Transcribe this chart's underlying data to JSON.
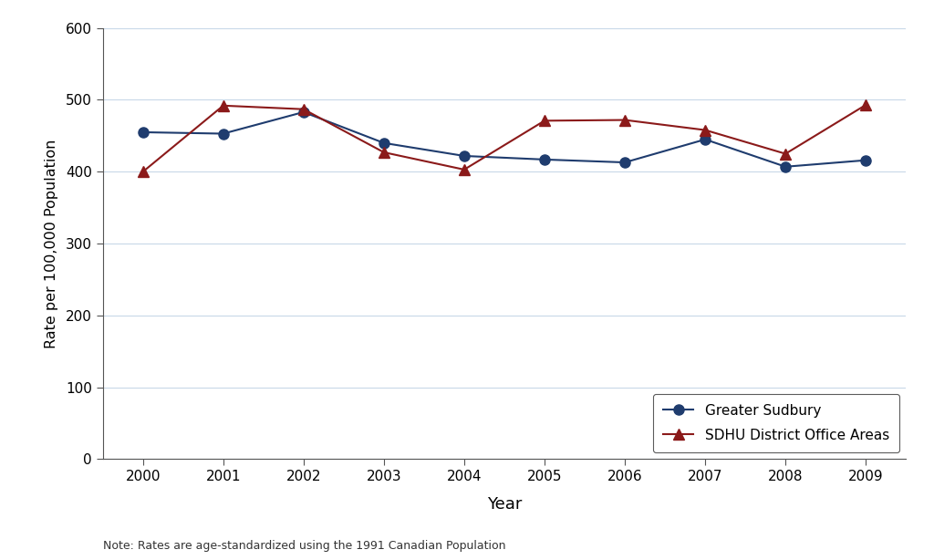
{
  "years": [
    2000,
    2001,
    2002,
    2003,
    2004,
    2005,
    2006,
    2007,
    2008,
    2009
  ],
  "greater_sudbury": [
    455,
    453,
    483,
    440,
    422,
    417,
    413,
    445,
    407,
    416
  ],
  "sdhu_district": [
    400,
    492,
    487,
    427,
    403,
    471,
    472,
    458,
    425,
    493
  ],
  "sudbury_color": "#1f3c6e",
  "sdhu_color": "#8b1a1a",
  "background_color": "#ffffff",
  "grid_color": "#c8d8e8",
  "ylabel": "Rate per 100,000 Population",
  "xlabel": "Year",
  "ylim": [
    0,
    600
  ],
  "yticks": [
    0,
    100,
    200,
    300,
    400,
    500,
    600
  ],
  "xlim": [
    1999.5,
    2009.5
  ],
  "legend_label_1": "Greater Sudbury",
  "legend_label_2": "SDHU District Office Areas",
  "note": "Note: Rates are age-standardized using the 1991 Canadian Population"
}
